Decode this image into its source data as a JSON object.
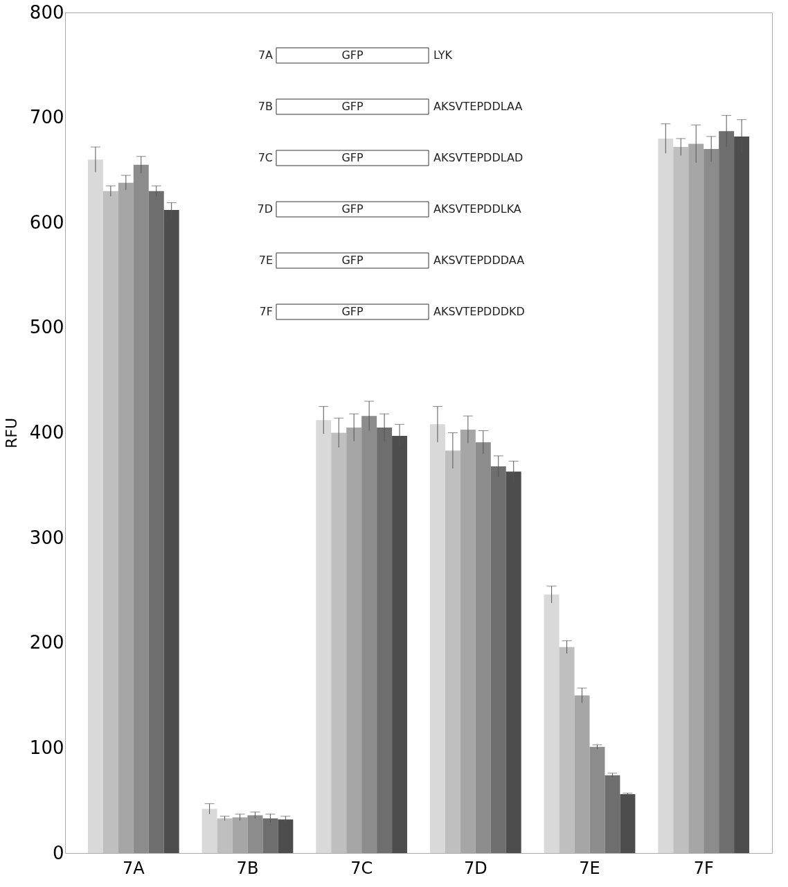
{
  "chart_data": {
    "type": "bar",
    "ylabel": "RFU",
    "categories": [
      "7A",
      "7B",
      "7C",
      "7D",
      "7E",
      "7F"
    ],
    "series": [
      {
        "color": "#d9d9d9",
        "values": [
          660,
          42,
          412,
          408,
          246,
          680
        ],
        "errors": [
          12,
          5,
          13,
          17,
          8,
          14
        ]
      },
      {
        "color": "#bfbfbf",
        "values": [
          630,
          33,
          400,
          383,
          196,
          672
        ],
        "errors": [
          5,
          2,
          14,
          17,
          6,
          8
        ]
      },
      {
        "color": "#a6a6a6",
        "values": [
          638,
          34,
          405,
          403,
          150,
          675
        ],
        "errors": [
          7,
          3,
          13,
          13,
          7,
          18
        ]
      },
      {
        "color": "#8c8c8c",
        "values": [
          655,
          36,
          416,
          391,
          101,
          670
        ],
        "errors": [
          8,
          3,
          14,
          11,
          2,
          12
        ]
      },
      {
        "color": "#6e6e6e",
        "values": [
          630,
          33,
          405,
          368,
          74,
          687
        ],
        "errors": [
          5,
          4,
          13,
          10,
          2,
          15
        ]
      },
      {
        "color": "#4d4d4d",
        "values": [
          612,
          32,
          397,
          363,
          56,
          682
        ],
        "errors": [
          7,
          3,
          11,
          10,
          1,
          16
        ]
      }
    ],
    "ylim": [
      0,
      800
    ],
    "yticks": [
      0,
      100,
      200,
      300,
      400,
      500,
      600,
      700,
      800
    ],
    "grid": false,
    "legend": false,
    "annotations": [
      "7A",
      "GFP",
      "LYK",
      "7B",
      "GFP",
      "AKSVTEPDDLAA",
      "7C",
      "GFP",
      "AKSVTEPDDLAD",
      "7D",
      "GFP",
      "AKSVTEPDDLKA",
      "7E",
      "GFP",
      "AKSVTEPDDDAA",
      "7F",
      "GFP",
      "AKSVTEPDDDKD"
    ]
  }
}
